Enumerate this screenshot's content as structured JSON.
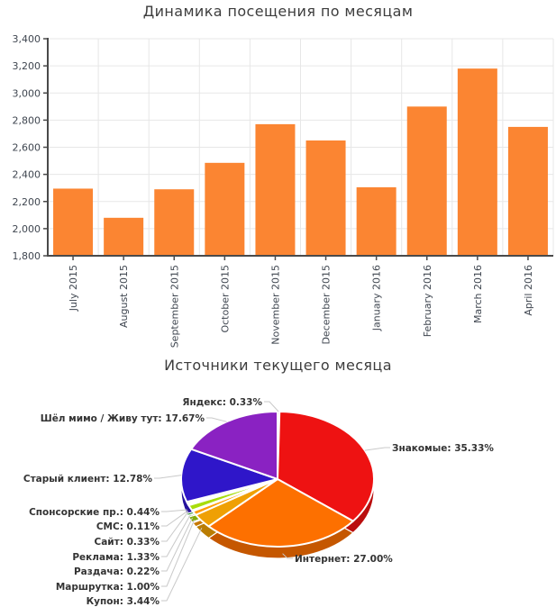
{
  "styles": {
    "background": "#ffffff",
    "title_color": "#3d3d3d",
    "axis_label_color": "#3f4650",
    "axis_line_color": "#4a4a4a",
    "grid_color": "#e7e7e7",
    "leader_line_color": "#c9c9c9",
    "pie_label_color": "#333333"
  },
  "chart_data": [
    {
      "type": "bar",
      "title": "Динамика посещения по месяцам",
      "categories": [
        "July 2015",
        "August 2015",
        "September 2015",
        "October 2015",
        "November 2015",
        "December 2015",
        "January 2016",
        "February 2016",
        "March 2016",
        "April 2016"
      ],
      "values": [
        2295,
        2080,
        2290,
        2485,
        2770,
        2650,
        2305,
        2900,
        3180,
        2750
      ],
      "xlabel": "",
      "ylabel": "",
      "ylim": [
        1800,
        3400
      ],
      "ytick_step": 200,
      "grid": true,
      "legend": "none",
      "bar_color": "#fb8532"
    },
    {
      "type": "pie",
      "title": "Источники текущего месяца",
      "legend": "none",
      "label_format": "{label}: {value}%",
      "slices": [
        {
          "label": "Яндекс",
          "value": 0.33,
          "color": "#f50d0d"
        },
        {
          "label": "Знакомые",
          "value": 35.33,
          "color": "#ee1212"
        },
        {
          "label": "Интернет",
          "value": 27.0,
          "color": "#fd7000"
        },
        {
          "label": "Купон",
          "value": 3.44,
          "color": "#efa004"
        },
        {
          "label": "Маршрутка",
          "value": 1.0,
          "color": "#ff9b05"
        },
        {
          "label": "Раздача",
          "value": 0.22,
          "color": "#dcc806"
        },
        {
          "label": "Реклама",
          "value": 1.33,
          "color": "#a8dd0c"
        },
        {
          "label": "Сайт",
          "value": 0.33,
          "color": "#7bd427"
        },
        {
          "label": "СМС",
          "value": 0.11,
          "color": "#c9ee53"
        },
        {
          "label": "Спонсорские пр.",
          "value": 0.44,
          "color": "#129e12"
        },
        {
          "label": "Старый клиент",
          "value": 12.78,
          "color": "#2f16c9"
        },
        {
          "label": "Шёл мимо / Живу тут",
          "value": 17.67,
          "color": "#8a22c2"
        }
      ],
      "start_angle_deg": 0,
      "direction": "clockwise",
      "effect_3d": true
    }
  ]
}
